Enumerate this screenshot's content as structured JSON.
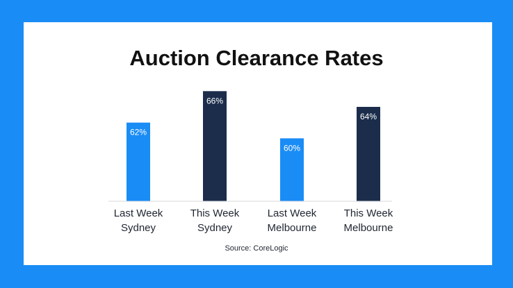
{
  "page": {
    "background_color": "#1a8cf5",
    "card_color": "#ffffff"
  },
  "chart_data": {
    "type": "bar",
    "title": "Auction Clearance Rates",
    "categories": [
      [
        "Last Week",
        "Sydney"
      ],
      [
        "This Week",
        "Sydney"
      ],
      [
        "Last Week",
        "Melbourne"
      ],
      [
        "This Week",
        "Melbourne"
      ]
    ],
    "values": [
      62,
      66,
      60,
      64
    ],
    "value_labels": [
      "62%",
      "66%",
      "60%",
      "64%"
    ],
    "bar_colors": [
      "#1a8cf5",
      "#1b2d4b",
      "#1a8cf5",
      "#1b2d4b"
    ],
    "ylim": [
      52,
      67
    ],
    "xlabel": "",
    "ylabel": "",
    "grid": false,
    "legend": "none",
    "source": "Source: CoreLogic"
  }
}
